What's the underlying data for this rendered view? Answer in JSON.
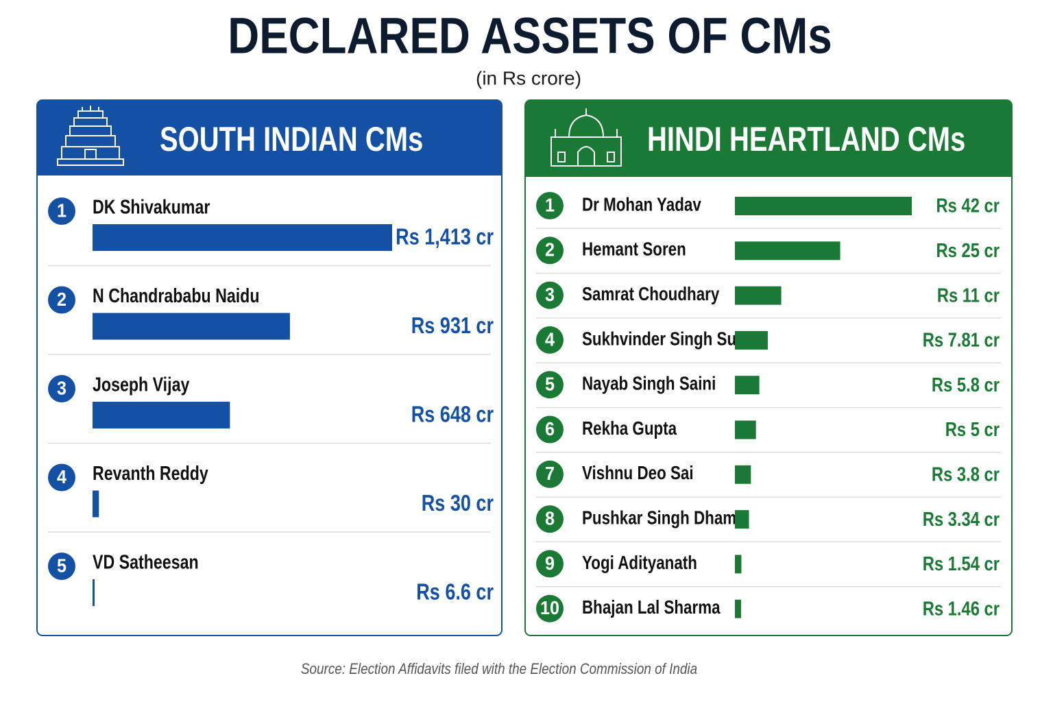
{
  "title": "DECLARED ASSETS OF CMs",
  "subtitle": "(in Rs crore)",
  "source": "Source: Election Affidavits filed with the Election Commission of India",
  "chart_data": [
    {
      "type": "bar",
      "title": "SOUTH INDIAN CMs",
      "color": "#1450a3",
      "ranks": [
        1,
        2,
        3,
        4,
        5
      ],
      "categories": [
        "DK Shivakumar",
        "N Chandrababu Naidu",
        "Joseph Vijay",
        "Revanth Reddy",
        "VD Satheesan"
      ],
      "values": [
        1413,
        931,
        648,
        30,
        6.6
      ],
      "value_labels": [
        "Rs 1,413 cr",
        "Rs 931 cr",
        "Rs 648 cr",
        "Rs 30 cr",
        "Rs 6.6 cr"
      ]
    },
    {
      "type": "bar",
      "title": "HINDI HEARTLAND CMs",
      "color": "#1a7a35",
      "ranks": [
        1,
        2,
        3,
        4,
        5,
        6,
        7,
        8,
        9,
        10
      ],
      "categories": [
        "Dr Mohan Yadav",
        "Hemant Soren",
        "Samrat Choudhary",
        "Sukhvinder Singh Sukhu",
        "Nayab Singh Saini",
        "Rekha Gupta",
        "Vishnu Deo Sai",
        "Pushkar Singh Dhami",
        "Yogi Adityanath",
        "Bhajan Lal Sharma"
      ],
      "values": [
        42,
        25,
        11,
        7.81,
        5.8,
        5,
        3.8,
        3.34,
        1.54,
        1.46
      ],
      "value_labels": [
        "Rs 42 cr",
        "Rs 25 cr",
        "Rs 11 cr",
        "Rs 7.81 cr",
        "Rs 5.8 cr",
        "Rs 5 cr",
        "Rs 3.8 cr",
        "Rs 3.34 cr",
        "Rs 1.54 cr",
        "Rs 1.46 cr"
      ]
    }
  ]
}
